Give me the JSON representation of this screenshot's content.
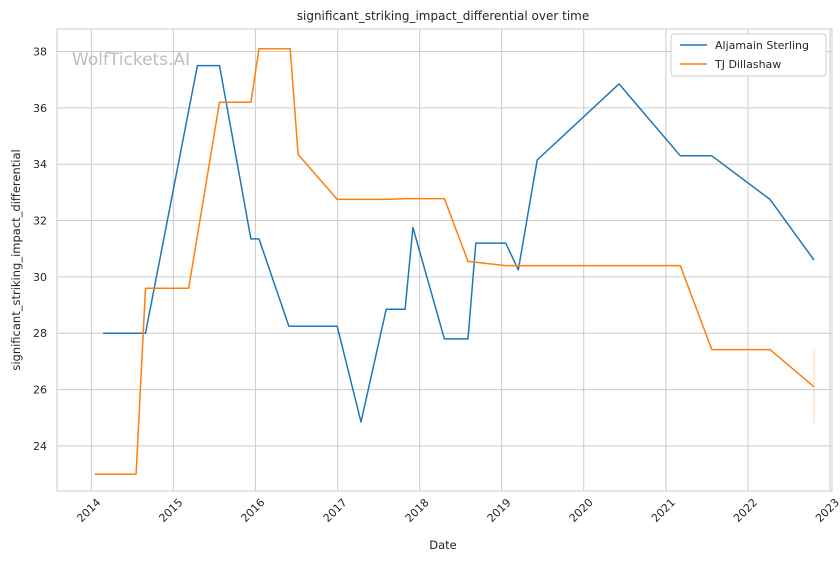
{
  "chart_data": {
    "type": "line",
    "title": "significant_striking_impact_differential over time",
    "xlabel": "Date",
    "ylabel": "significant_striking_impact_differential",
    "watermark": "WolfTickets.AI",
    "x_ticks": [
      "2014",
      "2015",
      "2016",
      "2017",
      "2018",
      "2019",
      "2020",
      "2021",
      "2022",
      "2023"
    ],
    "y_ticks": [
      24,
      26,
      28,
      30,
      32,
      34,
      36,
      38
    ],
    "xlim": [
      "2013-08-01",
      "2023-01-10"
    ],
    "ylim": [
      22.4,
      38.8
    ],
    "grid": true,
    "legend_position": "top-right",
    "series": [
      {
        "name": "Aljamain Sterling",
        "color": "#1f77b4",
        "points": [
          [
            "2014-02-22",
            28.0
          ],
          [
            "2014-08-30",
            28.0
          ],
          [
            "2015-04-18",
            37.5
          ],
          [
            "2015-07-25",
            37.5
          ],
          [
            "2015-12-12",
            31.35
          ],
          [
            "2016-01-17",
            31.35
          ],
          [
            "2016-05-29",
            28.25
          ],
          [
            "2016-12-30",
            28.25
          ],
          [
            "2017-04-15",
            24.85
          ],
          [
            "2017-08-05",
            28.85
          ],
          [
            "2017-10-28",
            28.85
          ],
          [
            "2017-12-02",
            31.75
          ],
          [
            "2018-04-21",
            27.8
          ],
          [
            "2018-08-04",
            27.8
          ],
          [
            "2018-09-08",
            31.2
          ],
          [
            "2019-01-19",
            31.2
          ],
          [
            "2019-03-16",
            30.25
          ],
          [
            "2019-06-08",
            34.15
          ],
          [
            "2020-06-06",
            36.85
          ],
          [
            "2021-03-06",
            34.3
          ],
          [
            "2021-07-24",
            34.3
          ],
          [
            "2022-04-09",
            32.75
          ],
          [
            "2022-10-22",
            30.6
          ]
        ]
      },
      {
        "name": "TJ Dillashaw",
        "color": "#ff7f0e",
        "points": [
          [
            "2014-01-15",
            23.0
          ],
          [
            "2014-07-19",
            23.0
          ],
          [
            "2014-08-30",
            29.6
          ],
          [
            "2015-03-10",
            29.6
          ],
          [
            "2015-07-25",
            36.2
          ],
          [
            "2015-12-12",
            36.2
          ],
          [
            "2016-01-17",
            38.1
          ],
          [
            "2016-06-04",
            38.1
          ],
          [
            "2016-07-09",
            34.35
          ],
          [
            "2016-12-30",
            32.75
          ],
          [
            "2017-08-05",
            32.75
          ],
          [
            "2017-11-04",
            32.78
          ],
          [
            "2018-04-21",
            32.78
          ],
          [
            "2018-08-04",
            30.55
          ],
          [
            "2019-01-19",
            30.4
          ],
          [
            "2021-03-06",
            30.4
          ],
          [
            "2021-07-24",
            27.42
          ],
          [
            "2022-04-09",
            27.42
          ],
          [
            "2022-10-22",
            26.1
          ]
        ]
      }
    ],
    "annotations": [
      {
        "type": "vertical-bar",
        "color": "#ff7f0e",
        "x": "2022-10-22",
        "y_range": [
          24.8,
          27.4
        ]
      }
    ]
  }
}
